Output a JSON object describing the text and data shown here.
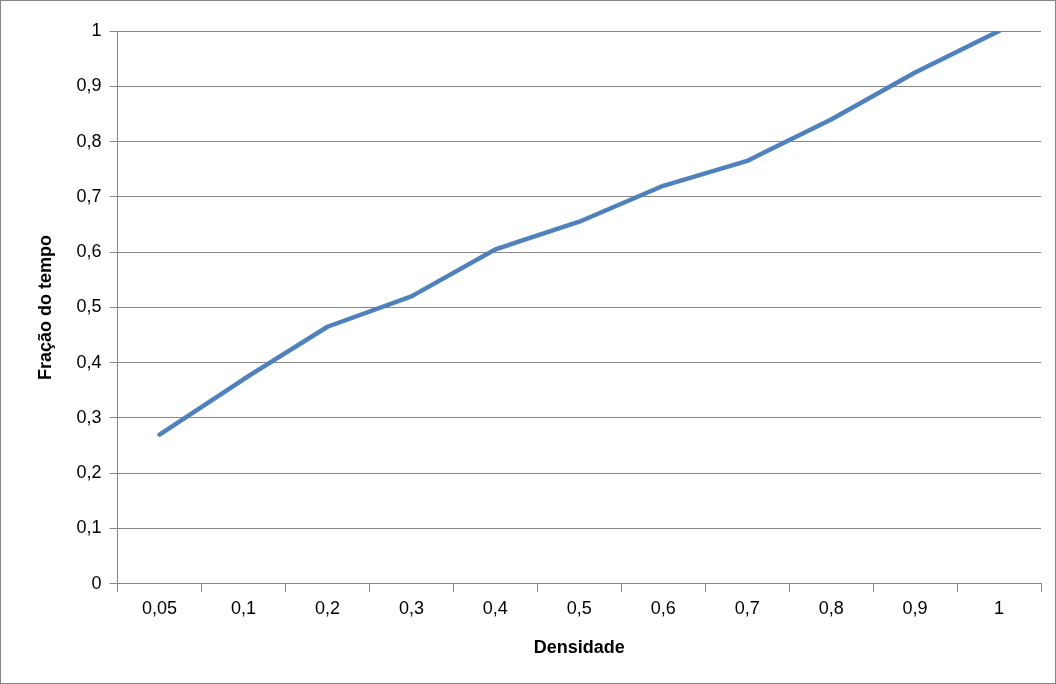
{
  "chart_data": {
    "type": "line",
    "xlabel": "Densidade",
    "ylabel": "Fração do tempo",
    "categories": [
      "0,05",
      "0,1",
      "0,2",
      "0,3",
      "0,4",
      "0,5",
      "0,6",
      "0,7",
      "0,8",
      "0,9",
      "1"
    ],
    "series": [
      {
        "color": "#4f81bd",
        "values": [
          0.27,
          0.37,
          0.465,
          0.52,
          0.605,
          0.655,
          0.72,
          0.765,
          0.84,
          0.925,
          1
        ]
      }
    ],
    "ylim": [
      0,
      1
    ],
    "yticks": [
      {
        "value": 0,
        "label": "0"
      },
      {
        "value": 0.1,
        "label": "0,1"
      },
      {
        "value": 0.2,
        "label": "0,2"
      },
      {
        "value": 0.3,
        "label": "0,3"
      },
      {
        "value": 0.4,
        "label": "0,4"
      },
      {
        "value": 0.5,
        "label": "0,5"
      },
      {
        "value": 0.6,
        "label": "0,6"
      },
      {
        "value": 0.7,
        "label": "0,7"
      },
      {
        "value": 0.8,
        "label": "0,8"
      },
      {
        "value": 0.9,
        "label": "0,9"
      },
      {
        "value": 1,
        "label": "1"
      }
    ],
    "grid": "y",
    "legend": false,
    "marker": "none",
    "line_style": "solid"
  }
}
